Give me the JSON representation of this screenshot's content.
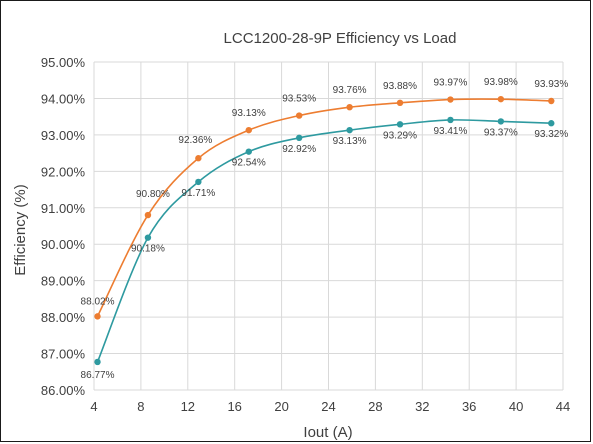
{
  "chart_data": {
    "type": "scatter",
    "title": "LCC1200-28-9P Efficiency vs Load",
    "xlabel": "Iout (A)",
    "ylabel": "Efficiency (%)",
    "xlim": [
      4,
      44
    ],
    "ylim": [
      86.0,
      95.0
    ],
    "x_ticks": [
      "4",
      "8",
      "12",
      "16",
      "20",
      "24",
      "28",
      "32",
      "36",
      "40",
      "44"
    ],
    "y_ticks": [
      "86.00%",
      "87.00%",
      "88.00%",
      "89.00%",
      "90.00%",
      "91.00%",
      "92.00%",
      "93.00%",
      "94.00%",
      "95.00%"
    ],
    "grid": true,
    "series": [
      {
        "color": "#ed7d31",
        "x": [
          4.3,
          8.6,
          12.9,
          17.2,
          21.5,
          25.8,
          30.1,
          34.4,
          38.7,
          43.0
        ],
        "y": [
          88.02,
          90.8,
          92.36,
          93.13,
          93.53,
          93.76,
          93.88,
          93.97,
          93.98,
          93.93
        ],
        "labels": [
          "88.02%",
          "90.80%",
          "92.36%",
          "93.13%",
          "93.53%",
          "93.76%",
          "93.88%",
          "93.97%",
          "93.98%",
          "93.93%"
        ]
      },
      {
        "color": "#2e9aa0",
        "x": [
          4.3,
          8.6,
          12.9,
          17.2,
          21.5,
          25.8,
          30.1,
          34.4,
          38.7,
          43.0
        ],
        "y": [
          86.77,
          90.18,
          91.71,
          92.54,
          92.92,
          93.13,
          93.29,
          93.41,
          93.37,
          93.32
        ],
        "labels": [
          "86.77%",
          "90.18%",
          "91.71%",
          "92.54%",
          "92.92%",
          "93.13%",
          "93.29%",
          "93.41%",
          "93.37%",
          "93.32%"
        ]
      }
    ]
  }
}
